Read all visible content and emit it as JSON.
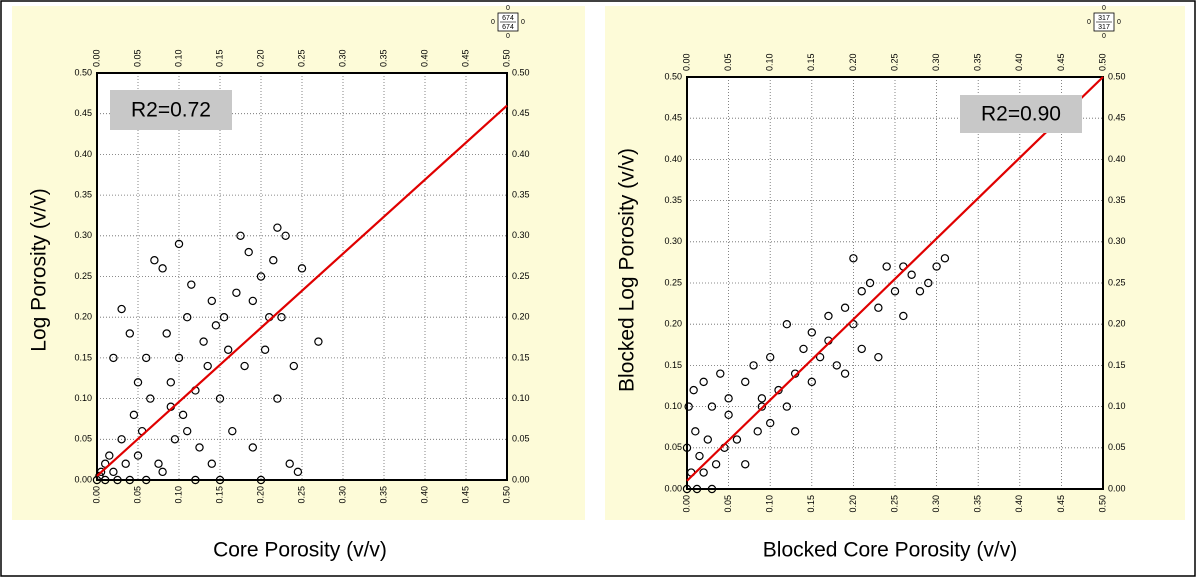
{
  "chart_data": [
    {
      "type": "scatter",
      "x_label": "Core Porosity (v/v)",
      "y_label": "Log Porosity (v/v)",
      "annotation": "R2=0.72",
      "count": {
        "top": 0,
        "upper": 674,
        "lower": 674,
        "bottom": 0,
        "left": 0,
        "right": 0
      },
      "xlim": [
        0,
        0.5
      ],
      "ylim": [
        0,
        0.5
      ],
      "grid": true,
      "marker_color": "#000000",
      "xticks": [
        {
          "value": 0,
          "label": "0.00"
        },
        {
          "value": 0.05,
          "label": "0.05"
        },
        {
          "value": 0.1,
          "label": "0.10"
        },
        {
          "value": 0.15,
          "label": "0.15"
        },
        {
          "value": 0.2,
          "label": "0.20"
        },
        {
          "value": 0.25,
          "label": "0.25"
        },
        {
          "value": 0.3,
          "label": "0.30"
        },
        {
          "value": 0.35,
          "label": "0.35"
        },
        {
          "value": 0.4,
          "label": "0.40"
        },
        {
          "value": 0.45,
          "label": "0.45"
        },
        {
          "value": 0.5,
          "label": "0.50"
        }
      ],
      "yticks": [
        {
          "value": 0,
          "label": "0.00"
        },
        {
          "value": 0.05,
          "label": "0.05"
        },
        {
          "value": 0.1,
          "label": "0.10"
        },
        {
          "value": 0.15,
          "label": "0.15"
        },
        {
          "value": 0.2,
          "label": "0.20"
        },
        {
          "value": 0.25,
          "label": "0.25"
        },
        {
          "value": 0.3,
          "label": "0.30"
        },
        {
          "value": 0.35,
          "label": "0.35"
        },
        {
          "value": 0.4,
          "label": "0.40"
        },
        {
          "value": 0.45,
          "label": "0.45"
        },
        {
          "value": 0.5,
          "label": "0.50"
        }
      ],
      "x": [
        0,
        0.005,
        0.01,
        0.003,
        0.01,
        0.02,
        0.015,
        0.025,
        0.03,
        0.035,
        0.04,
        0.045,
        0.05,
        0.05,
        0.055,
        0.06,
        0.065,
        0.07,
        0.075,
        0.08,
        0.085,
        0.09,
        0.095,
        0.1,
        0.1,
        0.105,
        0.11,
        0.115,
        0.12,
        0.125,
        0.13,
        0.135,
        0.14,
        0.145,
        0.15,
        0.15,
        0.155,
        0.16,
        0.165,
        0.17,
        0.175,
        0.18,
        0.185,
        0.19,
        0.19,
        0.2,
        0.2,
        0.205,
        0.21,
        0.215,
        0.22,
        0.22,
        0.225,
        0.23,
        0.235,
        0.24,
        0.245,
        0.25,
        0.27,
        0.02,
        0.03,
        0.04,
        0.06,
        0.08,
        0.12,
        0.14,
        0.11,
        0.09
      ],
      "values": [
        0,
        0.01,
        0.02,
        0.005,
        0,
        0.01,
        0.03,
        0,
        0.05,
        0.02,
        0,
        0.08,
        0.03,
        0.12,
        0.06,
        0.15,
        0.1,
        0.27,
        0.02,
        0.26,
        0.18,
        0.12,
        0.05,
        0.29,
        0.15,
        0.08,
        0.2,
        0.24,
        0.11,
        0.04,
        0.17,
        0.14,
        0.22,
        0.19,
        0,
        0.1,
        0.2,
        0.16,
        0.06,
        0.23,
        0.3,
        0.14,
        0.28,
        0.04,
        0.22,
        0,
        0.25,
        0.16,
        0.2,
        0.27,
        0.31,
        0.1,
        0.2,
        0.3,
        0.02,
        0.14,
        0.01,
        0.26,
        0.17,
        0.15,
        0.21,
        0.18,
        0,
        0.01,
        0,
        0.02,
        0.06,
        0.09
      ],
      "trendline": {
        "color": "#e00000",
        "x": [
          0,
          0.5
        ],
        "values": [
          0.005,
          0.46
        ]
      }
    },
    {
      "type": "scatter",
      "x_label": "Blocked Core Porosity (v/v)",
      "y_label": "Blocked Log Porosity (v/v)",
      "annotation": "R2=0.90",
      "count": {
        "top": 0,
        "upper": 317,
        "lower": 317,
        "bottom": 0,
        "left": 0,
        "right": 0
      },
      "xlim": [
        0,
        0.5
      ],
      "ylim": [
        0,
        0.5
      ],
      "grid": true,
      "marker_color": "#000000",
      "xticks": [
        {
          "value": 0,
          "label": "0.00"
        },
        {
          "value": 0.05,
          "label": "0.05"
        },
        {
          "value": 0.1,
          "label": "0.10"
        },
        {
          "value": 0.15,
          "label": "0.15"
        },
        {
          "value": 0.2,
          "label": "0.20"
        },
        {
          "value": 0.25,
          "label": "0.25"
        },
        {
          "value": 0.3,
          "label": "0.30"
        },
        {
          "value": 0.35,
          "label": "0.35"
        },
        {
          "value": 0.4,
          "label": "0.40"
        },
        {
          "value": 0.45,
          "label": "0.45"
        },
        {
          "value": 0.5,
          "label": "0.50"
        }
      ],
      "yticks": [
        {
          "value": 0,
          "label": "0.00"
        },
        {
          "value": 0.05,
          "label": "0.05"
        },
        {
          "value": 0.1,
          "label": "0.10"
        },
        {
          "value": 0.15,
          "label": "0.15"
        },
        {
          "value": 0.2,
          "label": "0.20"
        },
        {
          "value": 0.25,
          "label": "0.25"
        },
        {
          "value": 0.3,
          "label": "0.30"
        },
        {
          "value": 0.35,
          "label": "0.35"
        },
        {
          "value": 0.4,
          "label": "0.40"
        },
        {
          "value": 0.45,
          "label": "0.45"
        },
        {
          "value": 0.5,
          "label": "0.50"
        }
      ],
      "x": [
        0,
        0,
        0.002,
        0.005,
        0.008,
        0.01,
        0.012,
        0.015,
        0.02,
        0.02,
        0.025,
        0.03,
        0.03,
        0.035,
        0.04,
        0.045,
        0.05,
        0.06,
        0.07,
        0.08,
        0.085,
        0.09,
        0.1,
        0.1,
        0.11,
        0.12,
        0.12,
        0.13,
        0.13,
        0.14,
        0.15,
        0.15,
        0.16,
        0.17,
        0.17,
        0.18,
        0.19,
        0.19,
        0.2,
        0.2,
        0.21,
        0.21,
        0.22,
        0.23,
        0.23,
        0.24,
        0.25,
        0.26,
        0.26,
        0.27,
        0.28,
        0.29,
        0.3,
        0.31,
        0.05,
        0.07,
        0.09
      ],
      "values": [
        0,
        0.05,
        0.1,
        0.02,
        0.12,
        0.07,
        0,
        0.04,
        0.13,
        0.02,
        0.06,
        0,
        0.1,
        0.03,
        0.14,
        0.05,
        0.11,
        0.06,
        0.03,
        0.15,
        0.07,
        0.11,
        0.08,
        0.16,
        0.12,
        0.1,
        0.2,
        0.07,
        0.14,
        0.17,
        0.13,
        0.19,
        0.16,
        0.21,
        0.18,
        0.15,
        0.22,
        0.14,
        0.2,
        0.28,
        0.24,
        0.17,
        0.25,
        0.22,
        0.16,
        0.27,
        0.24,
        0.27,
        0.21,
        0.26,
        0.24,
        0.25,
        0.27,
        0.28,
        0.09,
        0.13,
        0.1
      ],
      "trendline": {
        "color": "#e00000",
        "x": [
          0,
          0.5
        ],
        "values": [
          0.01,
          0.5
        ]
      }
    }
  ]
}
